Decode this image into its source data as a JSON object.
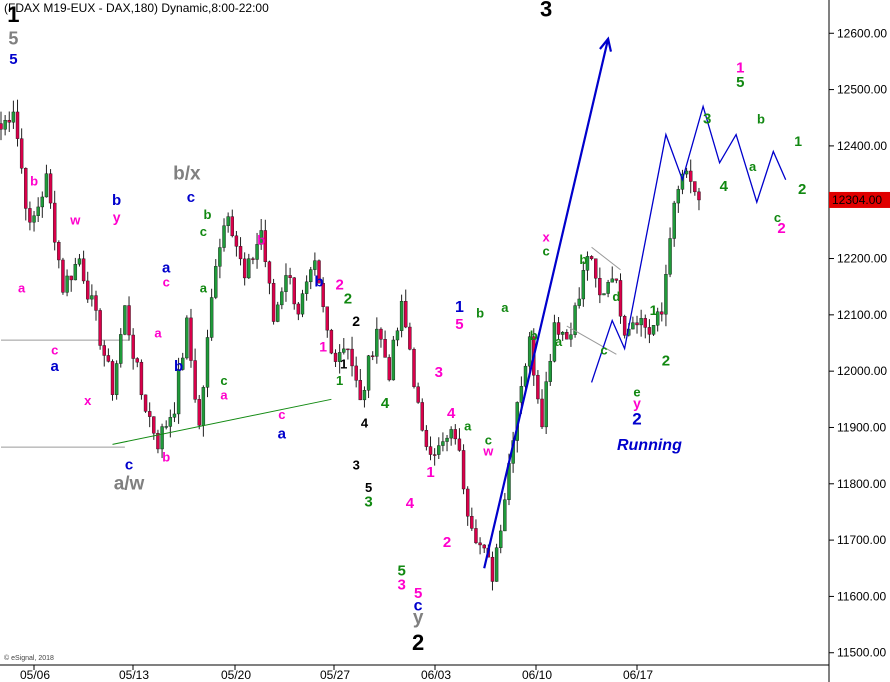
{
  "header": {
    "title": "(FDAX M19-EUX - DAX,180) Dynamic,8:00-22:00"
  },
  "price_tag": {
    "value": "12304.00",
    "color": "#e00000"
  },
  "copyright": "© eSignal, 2018",
  "colors": {
    "up": "#1f9a3a",
    "down": "#d8004a",
    "wick": "#202020",
    "blue": "#0000cc",
    "magenta": "#ff00cc",
    "green": "#118811",
    "black": "#000000",
    "gray": "#808080",
    "trend": "#128a12"
  },
  "chart_data": {
    "type": "candlestick",
    "title": "(FDAX M19-EUX - DAX,180) Dynamic,8:00-22:00",
    "x_ticks": [
      "05/06",
      "05/13",
      "05/20",
      "05/27",
      "06/03",
      "06/10",
      "06/17"
    ],
    "y_ticks": [
      "11500.00",
      "11600.00",
      "11700.00",
      "11800.00",
      "11900.00",
      "12000.00",
      "12100.00",
      "12200.00",
      "12300.00",
      "12400.00",
      "12500.00",
      "12600.00"
    ],
    "ylim": [
      11462,
      12645
    ],
    "last_price": 12304,
    "anchors": [
      [
        0,
        12430
      ],
      [
        3,
        12470
      ],
      [
        7,
        12250
      ],
      [
        11,
        12340
      ],
      [
        15,
        12150
      ],
      [
        19,
        12200
      ],
      [
        23,
        12090
      ],
      [
        27,
        11970
      ],
      [
        30,
        12110
      ],
      [
        34,
        11960
      ],
      [
        38,
        11875
      ],
      [
        42,
        11940
      ],
      [
        45,
        12080
      ],
      [
        48,
        11900
      ],
      [
        52,
        12200
      ],
      [
        55,
        12290
      ],
      [
        59,
        12160
      ],
      [
        63,
        12250
      ],
      [
        66,
        12090
      ],
      [
        69,
        12180
      ],
      [
        72,
        12110
      ],
      [
        76,
        12180
      ],
      [
        80,
        12030
      ],
      [
        84,
        12050
      ],
      [
        87,
        11940
      ],
      [
        91,
        12080
      ],
      [
        94,
        12000
      ],
      [
        97,
        12110
      ],
      [
        99,
        12040
      ],
      [
        102,
        11880
      ],
      [
        106,
        11860
      ],
      [
        110,
        11890
      ],
      [
        113,
        11760
      ],
      [
        116,
        11690
      ],
      [
        119,
        11640
      ],
      [
        122,
        11780
      ],
      [
        125,
        11950
      ],
      [
        128,
        12050
      ],
      [
        131,
        11920
      ],
      [
        134,
        12090
      ],
      [
        137,
        12060
      ],
      [
        140,
        12130
      ],
      [
        142,
        12210
      ],
      [
        145,
        12130
      ],
      [
        148,
        12180
      ],
      [
        151,
        12080
      ],
      [
        154,
        12100
      ],
      [
        157,
        12070
      ],
      [
        160,
        12100
      ],
      [
        162,
        12250
      ],
      [
        165,
        12350
      ],
      [
        169,
        12310
      ]
    ],
    "projection": [
      [
        117,
        11650
      ],
      [
        147,
        12590
      ],
      null,
      [
        143,
        11980
      ],
      [
        148,
        12090
      ],
      [
        151,
        12040
      ],
      [
        161,
        12420
      ],
      [
        165,
        12340
      ],
      [
        170,
        12470
      ],
      [
        174,
        12370
      ],
      [
        178,
        12420
      ],
      [
        183,
        12300
      ],
      [
        187,
        12390
      ],
      [
        190,
        12340
      ]
    ],
    "trendlines": [
      {
        "points": [
          [
            27,
            11870
          ],
          [
            80,
            11950
          ]
        ],
        "color": "#128a12"
      },
      {
        "points": [
          [
            137,
            12080
          ],
          [
            149,
            12030
          ]
        ],
        "color": "#999999"
      },
      {
        "points": [
          [
            143,
            12220
          ],
          [
            150,
            12180
          ]
        ],
        "color": "#999999"
      }
    ],
    "hlines": [
      {
        "y": 12055,
        "from": 0,
        "to": 31
      },
      {
        "y": 11865,
        "from": 0,
        "to": 30
      }
    ]
  },
  "labels": [
    {
      "t": "1",
      "x": 3,
      "y": 12620,
      "c": "black",
      "s": 22
    },
    {
      "t": "5",
      "x": 3,
      "y": 12580,
      "c": "gray",
      "s": 18
    },
    {
      "t": "5",
      "x": 3,
      "y": 12545,
      "c": "blue",
      "s": 15
    },
    {
      "t": "b",
      "x": 8,
      "y": 12330,
      "c": "magenta",
      "s": 13
    },
    {
      "t": "a",
      "x": 5,
      "y": 12140,
      "c": "magenta",
      "s": 13
    },
    {
      "t": "w",
      "x": 18,
      "y": 12260,
      "c": "magenta",
      "s": 13
    },
    {
      "t": "b",
      "x": 28,
      "y": 12295,
      "c": "blue",
      "s": 15
    },
    {
      "t": "y",
      "x": 28,
      "y": 12265,
      "c": "magenta",
      "s": 14
    },
    {
      "t": "c",
      "x": 13,
      "y": 12030,
      "c": "magenta",
      "s": 13
    },
    {
      "t": "a",
      "x": 13,
      "y": 12000,
      "c": "blue",
      "s": 15
    },
    {
      "t": "x",
      "x": 21,
      "y": 11940,
      "c": "magenta",
      "s": 13
    },
    {
      "t": "c",
      "x": 31,
      "y": 11825,
      "c": "blue",
      "s": 15
    },
    {
      "t": "a/w",
      "x": 31,
      "y": 11790,
      "c": "gray",
      "s": 19
    },
    {
      "t": "b",
      "x": 40,
      "y": 11840,
      "c": "magenta",
      "s": 13
    },
    {
      "t": "b/x",
      "x": 45,
      "y": 12340,
      "c": "gray",
      "s": 19
    },
    {
      "t": "c",
      "x": 46,
      "y": 12300,
      "c": "blue",
      "s": 15
    },
    {
      "t": "b",
      "x": 50,
      "y": 12270,
      "c": "green",
      "s": 13
    },
    {
      "t": "c",
      "x": 49,
      "y": 12240,
      "c": "green",
      "s": 13
    },
    {
      "t": "a",
      "x": 40,
      "y": 12175,
      "c": "blue",
      "s": 15
    },
    {
      "t": "c",
      "x": 40,
      "y": 12150,
      "c": "magenta",
      "s": 13
    },
    {
      "t": "a",
      "x": 38,
      "y": 12060,
      "c": "magenta",
      "s": 13
    },
    {
      "t": "b",
      "x": 43,
      "y": 12000,
      "c": "blue",
      "s": 15
    },
    {
      "t": "a",
      "x": 49,
      "y": 12140,
      "c": "green",
      "s": 13
    },
    {
      "t": "b",
      "x": 63,
      "y": 12225,
      "c": "magenta",
      "s": 13
    },
    {
      "t": "c",
      "x": 54,
      "y": 11975,
      "c": "green",
      "s": 13
    },
    {
      "t": "a",
      "x": 54,
      "y": 11950,
      "c": "magenta",
      "s": 13
    },
    {
      "t": "b",
      "x": 77,
      "y": 12150,
      "c": "blue",
      "s": 15
    },
    {
      "t": "c",
      "x": 68,
      "y": 11915,
      "c": "magenta",
      "s": 13
    },
    {
      "t": "a",
      "x": 68,
      "y": 11880,
      "c": "blue",
      "s": 15
    },
    {
      "t": "2",
      "x": 82,
      "y": 12145,
      "c": "magenta",
      "s": 15
    },
    {
      "t": "2",
      "x": 84,
      "y": 12120,
      "c": "green",
      "s": 15
    },
    {
      "t": "2",
      "x": 86,
      "y": 12080,
      "c": "black",
      "s": 14
    },
    {
      "t": "1",
      "x": 78,
      "y": 12035,
      "c": "magenta",
      "s": 14
    },
    {
      "t": "1",
      "x": 83,
      "y": 12005,
      "c": "black",
      "s": 13
    },
    {
      "t": "1",
      "x": 82,
      "y": 11975,
      "c": "green",
      "s": 13
    },
    {
      "t": "4",
      "x": 88,
      "y": 11900,
      "c": "black",
      "s": 13
    },
    {
      "t": "4",
      "x": 93,
      "y": 11935,
      "c": "green",
      "s": 15
    },
    {
      "t": "3",
      "x": 86,
      "y": 11825,
      "c": "black",
      "s": 13
    },
    {
      "t": "5",
      "x": 89,
      "y": 11785,
      "c": "black",
      "s": 13
    },
    {
      "t": "3",
      "x": 89,
      "y": 11760,
      "c": "green",
      "s": 15
    },
    {
      "t": "1",
      "x": 104,
      "y": 11812,
      "c": "magenta",
      "s": 15
    },
    {
      "t": "4",
      "x": 99,
      "y": 11757,
      "c": "magenta",
      "s": 15
    },
    {
      "t": "2",
      "x": 108,
      "y": 11688,
      "c": "magenta",
      "s": 15
    },
    {
      "t": "5",
      "x": 97,
      "y": 11637,
      "c": "green",
      "s": 15
    },
    {
      "t": "3",
      "x": 97,
      "y": 11612,
      "c": "magenta",
      "s": 15
    },
    {
      "t": "5",
      "x": 101,
      "y": 11597,
      "c": "magenta",
      "s": 15
    },
    {
      "t": "c",
      "x": 101,
      "y": 11575,
      "c": "blue",
      "s": 16
    },
    {
      "t": "y",
      "x": 101,
      "y": 11552,
      "c": "gray",
      "s": 19
    },
    {
      "t": "2",
      "x": 101,
      "y": 11505,
      "c": "black",
      "s": 22
    },
    {
      "t": "3",
      "x": 132,
      "y": 12630,
      "c": "black",
      "s": 22
    },
    {
      "t": "1",
      "x": 111,
      "y": 12105,
      "c": "blue",
      "s": 16
    },
    {
      "t": "5",
      "x": 111,
      "y": 12075,
      "c": "magenta",
      "s": 15
    },
    {
      "t": "b",
      "x": 116,
      "y": 12095,
      "c": "green",
      "s": 13
    },
    {
      "t": "a",
      "x": 122,
      "y": 12105,
      "c": "green",
      "s": 13
    },
    {
      "t": "3",
      "x": 106,
      "y": 11990,
      "c": "magenta",
      "s": 15
    },
    {
      "t": "4",
      "x": 109,
      "y": 11917,
      "c": "magenta",
      "s": 15
    },
    {
      "t": "a",
      "x": 113,
      "y": 11895,
      "c": "green",
      "s": 13
    },
    {
      "t": "c",
      "x": 118,
      "y": 11870,
      "c": "green",
      "s": 13
    },
    {
      "t": "w",
      "x": 118,
      "y": 11850,
      "c": "magenta",
      "s": 13
    },
    {
      "t": "x",
      "x": 132,
      "y": 12230,
      "c": "magenta",
      "s": 13
    },
    {
      "t": "c",
      "x": 132,
      "y": 12205,
      "c": "green",
      "s": 13
    },
    {
      "t": "b",
      "x": 141,
      "y": 12190,
      "c": "green",
      "s": 13
    },
    {
      "t": "d",
      "x": 149,
      "y": 12125,
      "c": "green",
      "s": 13
    },
    {
      "t": "b",
      "x": 129,
      "y": 12055,
      "c": "green",
      "s": 13
    },
    {
      "t": "a",
      "x": 135,
      "y": 12045,
      "c": "green",
      "s": 13
    },
    {
      "t": "c",
      "x": 146,
      "y": 12030,
      "c": "green",
      "s": 13
    },
    {
      "t": "e",
      "x": 154,
      "y": 11955,
      "c": "green",
      "s": 13
    },
    {
      "t": "y",
      "x": 154,
      "y": 11935,
      "c": "magenta",
      "s": 14
    },
    {
      "t": "2",
      "x": 154,
      "y": 11905,
      "c": "blue",
      "s": 17
    },
    {
      "t": "Running",
      "x": 157,
      "y": 11860,
      "c": "blue",
      "s": 16,
      "italic": true
    },
    {
      "t": "1",
      "x": 158,
      "y": 12100,
      "c": "green",
      "s": 14
    },
    {
      "t": "2",
      "x": 161,
      "y": 12010,
      "c": "green",
      "s": 15
    },
    {
      "t": "3",
      "x": 171,
      "y": 12440,
      "c": "green",
      "s": 15
    },
    {
      "t": "4",
      "x": 175,
      "y": 12320,
      "c": "green",
      "s": 15
    },
    {
      "t": "1",
      "x": 179,
      "y": 12530,
      "c": "magenta",
      "s": 15
    },
    {
      "t": "5",
      "x": 179,
      "y": 12505,
      "c": "green",
      "s": 15
    },
    {
      "t": "b",
      "x": 184,
      "y": 12440,
      "c": "green",
      "s": 13
    },
    {
      "t": "a",
      "x": 182,
      "y": 12355,
      "c": "green",
      "s": 13
    },
    {
      "t": "1",
      "x": 193,
      "y": 12400,
      "c": "green",
      "s": 14
    },
    {
      "t": "c",
      "x": 188,
      "y": 12265,
      "c": "green",
      "s": 13
    },
    {
      "t": "2",
      "x": 189,
      "y": 12245,
      "c": "magenta",
      "s": 15
    },
    {
      "t": "2",
      "x": 194,
      "y": 12315,
      "c": "green",
      "s": 15
    }
  ]
}
